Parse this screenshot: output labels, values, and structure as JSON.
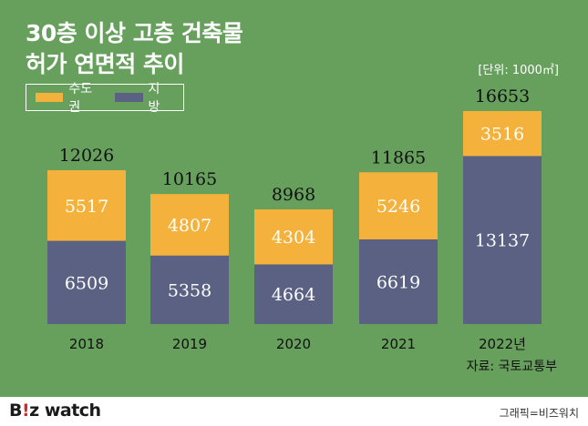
{
  "title_line1": "30층 이상 고층 건축물",
  "title_line2": "허가 연면적 추이",
  "unit": "[단위: 1000㎡]",
  "source": "자료: 국토교통부",
  "logo": {
    "part1": "B",
    "part2": "!",
    "part3": "z watch"
  },
  "credit": "그래픽=비즈워치",
  "colors": {
    "background": "#66a05c",
    "capital": "#f4b13b",
    "regional": "#5a6183",
    "bar_text": "#ffffff",
    "total_text": "#111111"
  },
  "chart_data": {
    "type": "bar",
    "stacked": true,
    "categories": [
      "2018",
      "2019",
      "2020",
      "2021",
      "2022년"
    ],
    "series": [
      {
        "name": "지방",
        "values": [
          6509,
          5358,
          4664,
          6619,
          13137
        ]
      },
      {
        "name": "수도권",
        "values": [
          5517,
          4807,
          4304,
          5246,
          3516
        ]
      }
    ],
    "totals": [
      "12026",
      "10165",
      "8968",
      "11865",
      "16653"
    ],
    "ylim": [
      0,
      16653
    ],
    "legend_position": "top-left",
    "grid": false
  }
}
